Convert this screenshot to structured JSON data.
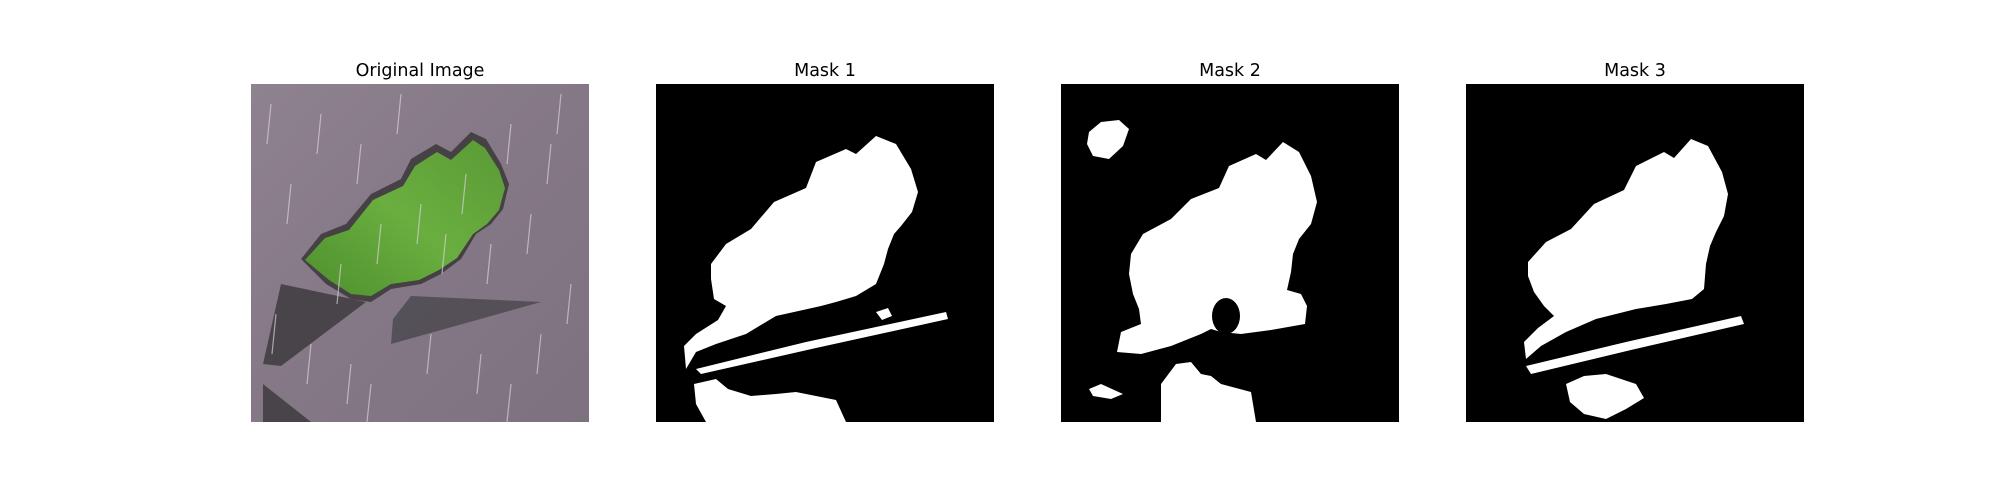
{
  "figure": {
    "panels": [
      {
        "title": "Original Image"
      },
      {
        "title": "Mask 1"
      },
      {
        "title": "Mask 2"
      },
      {
        "title": "Mask 3"
      }
    ],
    "colors": {
      "background": "#ffffff",
      "mask_background": "#000000",
      "mask_foreground": "#ffffff",
      "ground": "#8a7d8a",
      "leaf_green": "#5fa33a",
      "shadow": "#3c3a3e"
    }
  }
}
